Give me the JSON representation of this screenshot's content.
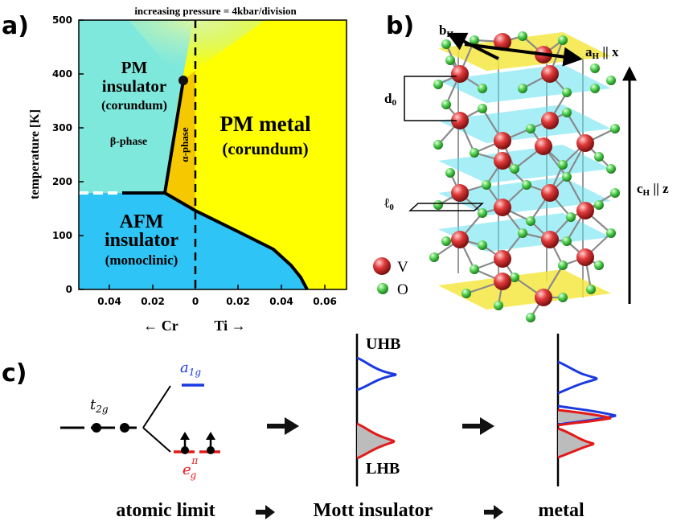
{
  "panels": {
    "a": {
      "label": "a)",
      "top_title": "increasing pressure = 4kbar/division",
      "ylabel": "temperature [K]",
      "yticks": [
        "0",
        "100",
        "200",
        "300",
        "400",
        "500"
      ],
      "xticks": [
        "0.04",
        "0.02",
        "0",
        "0.02",
        "0.04",
        "0.06"
      ],
      "x_left_label": "← Cr",
      "x_right_label": "Ti →",
      "regions": {
        "pm_insulator_l1": "PM",
        "pm_insulator_l2": "insulator",
        "pm_insulator_l3": "(corundum)",
        "beta_phase": "β-phase",
        "alpha_phase": "α-phase",
        "pm_metal_l1": "PM metal",
        "pm_metal_l2": "(corundum)",
        "afm_l1": "AFM",
        "afm_l2": "insulator",
        "afm_l3": "(monoclinic)"
      },
      "colors": {
        "pm_insulator": "#7fe8dc",
        "pm_metal": "#ffff00",
        "afm_insulator": "#2ec4f5",
        "alpha_phase": "#f5c800"
      }
    },
    "b": {
      "label": "b)",
      "b_axis": "b",
      "b_axis_sub": "H",
      "a_axis": "a",
      "a_axis_sub": "H",
      "a_axis_suffix": " || x",
      "c_axis": "c",
      "c_axis_sub": "H",
      "c_axis_suffix": " || z",
      "d0": "d",
      "d0_sub": "0",
      "l0": "ℓ",
      "l0_sub": "0",
      "legend_v": "V",
      "legend_o": "O",
      "colors": {
        "v_atom": "#d32f2f",
        "o_atom": "#43c943",
        "plane": "#5ee0f0",
        "end_plane": "#f5e642"
      }
    },
    "c": {
      "label": "c)",
      "t2g": "t",
      "t2g_sub": "2g",
      "a1g": "a",
      "a1g_sub": "1g",
      "egpi": "e",
      "egpi_sub": "g",
      "egpi_sup": "π",
      "uhb": "UHB",
      "lhb": "LHB",
      "bottom_atomic": "atomic limit",
      "bottom_mott": "Mott insulator",
      "bottom_metal": "metal",
      "colors": {
        "a1g": "#1a3ae0",
        "egpi": "#e31a1a"
      }
    }
  }
}
